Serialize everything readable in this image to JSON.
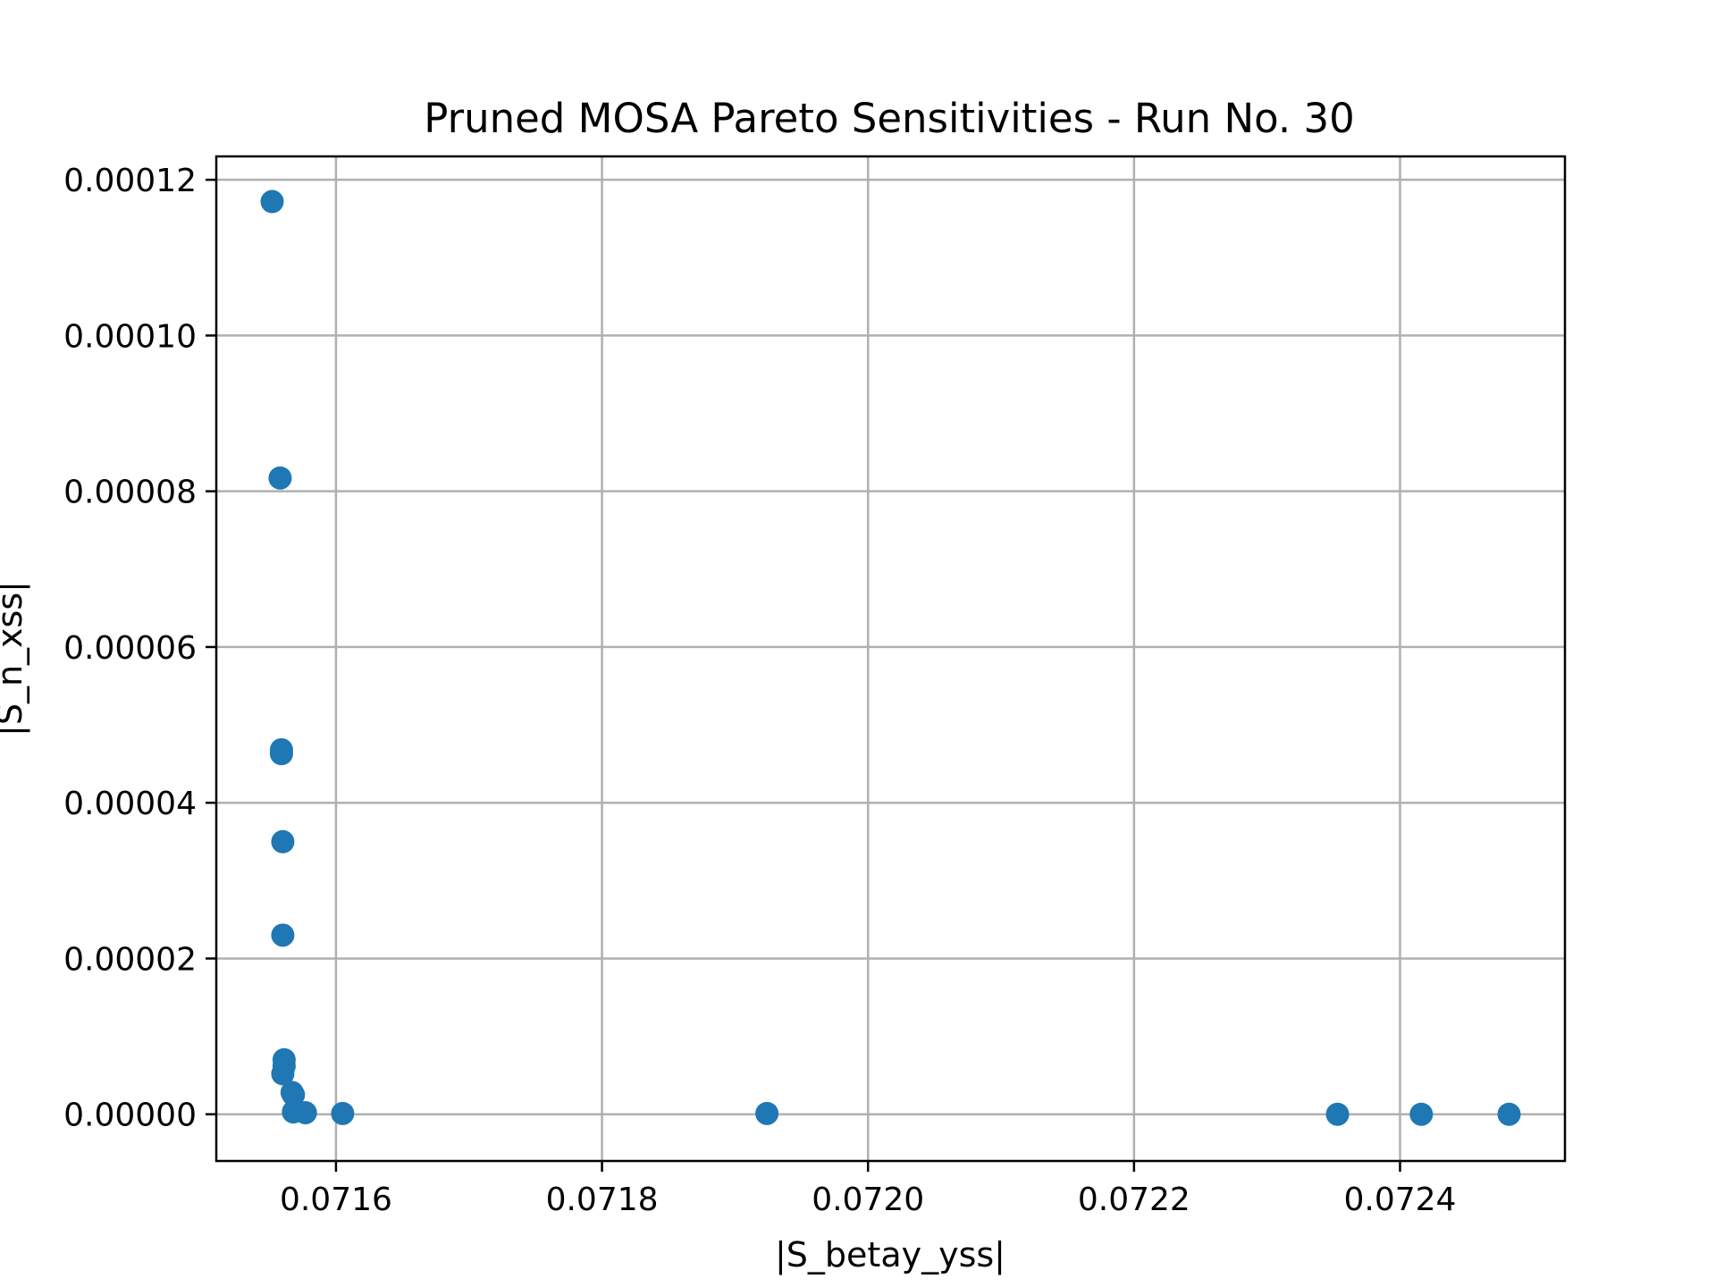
{
  "chart_data": {
    "type": "scatter",
    "title": "Pruned MOSA Pareto Sensitivities - Run No. 30",
    "xlabel": "|S_betay_yss|",
    "ylabel": "|S_n_xss|",
    "xlim": [
      0.07151,
      0.072524
    ],
    "ylim": [
      -6e-06,
      0.000123
    ],
    "xticks": [
      0.0716,
      0.0718,
      0.072,
      0.0722,
      0.0724
    ],
    "xtick_labels": [
      "0.0716",
      "0.0718",
      "0.0720",
      "0.0722",
      "0.0724"
    ],
    "yticks": [
      0.0,
      2e-05,
      4e-05,
      6e-05,
      8e-05,
      0.0001,
      0.00012
    ],
    "ytick_labels": [
      "0.00000",
      "0.00002",
      "0.00004",
      "0.00006",
      "0.00008",
      "0.00010",
      "0.00012"
    ],
    "grid": true,
    "marker_color": "#1f77b4",
    "points": [
      {
        "x": 0.071552,
        "y": 0.0001172
      },
      {
        "x": 0.071558,
        "y": 8.17e-05
      },
      {
        "x": 0.071559,
        "y": 4.68e-05
      },
      {
        "x": 0.071559,
        "y": 4.63e-05
      },
      {
        "x": 0.07156,
        "y": 3.5e-05
      },
      {
        "x": 0.07156,
        "y": 2.3e-05
      },
      {
        "x": 0.071561,
        "y": 7e-06
      },
      {
        "x": 0.071561,
        "y": 6.2e-06
      },
      {
        "x": 0.07156,
        "y": 5.2e-06
      },
      {
        "x": 0.071567,
        "y": 2.8e-06
      },
      {
        "x": 0.071568,
        "y": 2.5e-06
      },
      {
        "x": 0.071568,
        "y": 3e-07
      },
      {
        "x": 0.071577,
        "y": 2e-07
      },
      {
        "x": 0.071605,
        "y": 1e-07
      },
      {
        "x": 0.071924,
        "y": 1e-07
      },
      {
        "x": 0.072353,
        "y": 0.0
      },
      {
        "x": 0.072416,
        "y": 0.0
      },
      {
        "x": 0.072482,
        "y": 0.0
      }
    ]
  }
}
